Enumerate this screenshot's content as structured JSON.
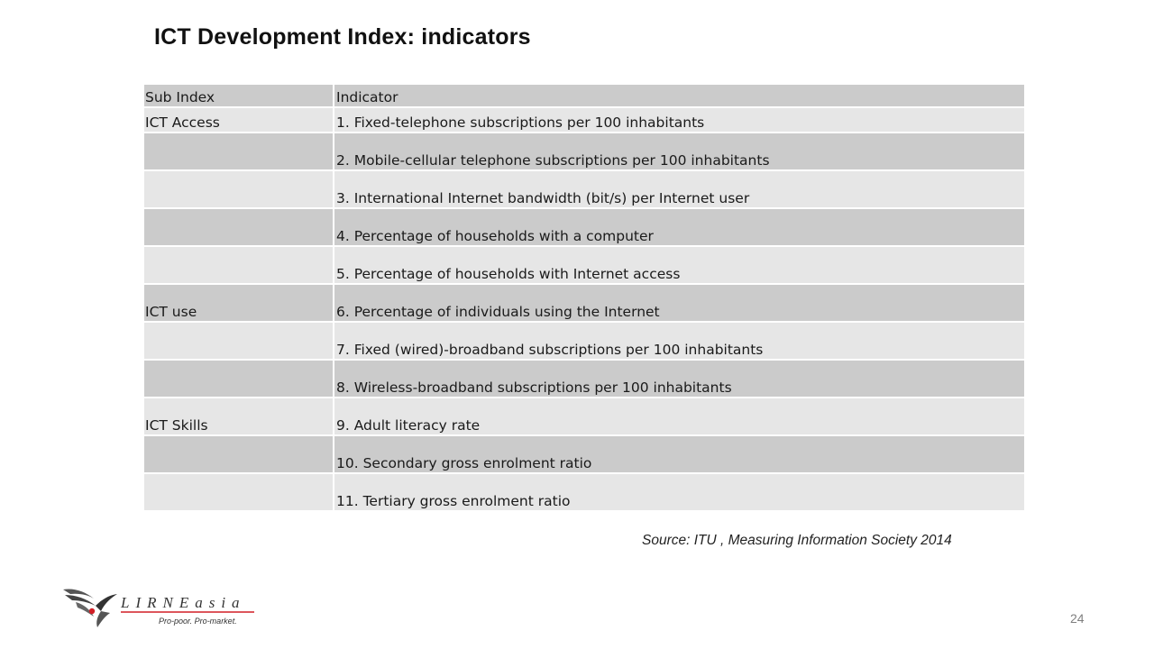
{
  "slide": {
    "title": "ICT Development Index: indicators",
    "source": "Source: ITU , Measuring Information Society 2014",
    "page_number": "24"
  },
  "table": {
    "headers": [
      "Sub Index",
      "Indicator"
    ],
    "rows": [
      {
        "sub_index": "ICT Access",
        "indicator": "1. Fixed-telephone subscriptions per 100 inhabitants"
      },
      {
        "sub_index": "",
        "indicator": "2. Mobile-cellular telephone subscriptions per 100 inhabitants"
      },
      {
        "sub_index": "",
        "indicator": "3. International Internet bandwidth (bit/s) per Internet user"
      },
      {
        "sub_index": "",
        "indicator": "4. Percentage of households with a computer"
      },
      {
        "sub_index": "",
        "indicator": "5. Percentage of households with Internet access"
      },
      {
        "sub_index": "ICT use",
        "indicator": "6. Percentage of individuals using the Internet"
      },
      {
        "sub_index": "",
        "indicator": "7. Fixed (wired)-broadband subscriptions per 100 inhabitants"
      },
      {
        "sub_index": "",
        "indicator": "8. Wireless-broadband subscriptions per 100 inhabitants"
      },
      {
        "sub_index": "ICT Skills",
        "indicator": "9. Adult literacy rate"
      },
      {
        "sub_index": "",
        "indicator": "10. Secondary gross enrolment ratio"
      },
      {
        "sub_index": "",
        "indicator": "11. Tertiary gross enrolment ratio"
      }
    ]
  },
  "logo": {
    "name": "LIRNEasia",
    "tagline": "Pro-poor. Pro-market.",
    "icon": "bird-logo-icon"
  },
  "colors": {
    "header_row": "#cbcbcb",
    "row_light": "#e6e6e6",
    "row_dark": "#cbcbcb",
    "logo_red": "#d21f26",
    "page_number": "#7f7f7f"
  }
}
